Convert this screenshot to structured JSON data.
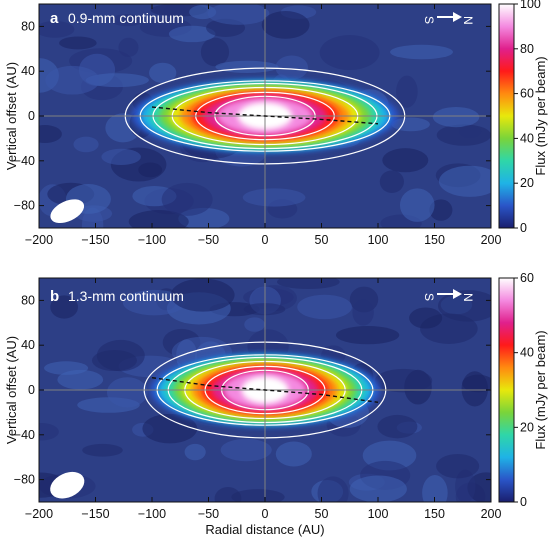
{
  "chart_data": [
    {
      "type": "heatmap",
      "panel_letter": "a",
      "title": "0.9-mm continuum",
      "xlabel": "",
      "ylabel": "Vertical offset (AU)",
      "xlim": [
        -200,
        200
      ],
      "ylim": [
        -100,
        100
      ],
      "x_ticks": [
        "−200",
        "−150",
        "−100",
        "−50",
        "0",
        "50",
        "100",
        "150",
        "200"
      ],
      "y_ticks": [
        "80",
        "40",
        "0",
        "−40",
        "−80"
      ],
      "colorbar": {
        "label": "Flux (mJy per beam)",
        "range": [
          0,
          100
        ],
        "ticks": [
          "100",
          "80",
          "60",
          "40",
          "20",
          "0"
        ]
      },
      "orientation": {
        "left": "S",
        "right": "N"
      },
      "disk": {
        "center": [
          0,
          0
        ],
        "half_width_x": 118,
        "half_height_y": 33,
        "peak_flux": 100
      },
      "midplane_curve": {
        "x": [
          -100,
          -50,
          0,
          50,
          100
        ],
        "y": [
          8,
          3,
          0,
          -3,
          -7
        ]
      },
      "beam": {
        "x": -175,
        "y": -85
      },
      "crosshair": {
        "x": 0,
        "y": 0
      }
    },
    {
      "type": "heatmap",
      "panel_letter": "b",
      "title": "1.3-mm continuum",
      "xlabel": "Radial distance (AU)",
      "ylabel": "Vertical offset (AU)",
      "xlim": [
        -200,
        200
      ],
      "ylim": [
        -100,
        100
      ],
      "x_ticks": [
        "−200",
        "−150",
        "−100",
        "−50",
        "0",
        "50",
        "100",
        "150",
        "200"
      ],
      "y_ticks": [
        "80",
        "40",
        "0",
        "−40",
        "−80"
      ],
      "colorbar": {
        "label": "Flux (mJy per beam)",
        "range": [
          0,
          60
        ],
        "ticks": [
          "60",
          "40",
          "20",
          "0"
        ]
      },
      "orientation": {
        "left": "S",
        "right": "N"
      },
      "disk": {
        "center": [
          0,
          0
        ],
        "half_width_x": 102,
        "half_height_y": 33,
        "peak_flux": 60
      },
      "midplane_curve": {
        "x": [
          -100,
          -50,
          0,
          50,
          100
        ],
        "y": [
          11,
          4,
          0,
          -4,
          -11
        ]
      },
      "beam": {
        "x": -175,
        "y": -85
      },
      "crosshair": {
        "x": 0,
        "y": 0
      }
    }
  ],
  "colors": {
    "background": "#2d3f86",
    "colormap": [
      "#1a1e6e",
      "#2a55c8",
      "#1fb3e6",
      "#2fd6a8",
      "#7ad43a",
      "#e8e80c",
      "#ff8a10",
      "#ff1a1a",
      "#e0208c",
      "#f48ae0",
      "#ffffff"
    ]
  }
}
